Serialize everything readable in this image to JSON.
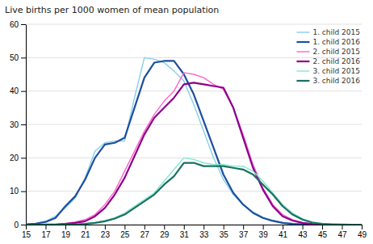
{
  "chart_data": {
    "type": "line",
    "title": "Live births per 1000 women of mean population",
    "x": [
      15,
      16,
      17,
      18,
      19,
      20,
      21,
      22,
      23,
      24,
      25,
      26,
      27,
      28,
      29,
      30,
      31,
      32,
      33,
      34,
      35,
      36,
      37,
      38,
      39,
      40,
      41,
      42,
      43,
      44,
      45,
      46,
      47,
      48,
      49
    ],
    "series": [
      {
        "name": "1. child 2015",
        "color": "#87CEEB",
        "values": [
          0.1,
          0.3,
          1.0,
          2.5,
          5.0,
          8.0,
          14.0,
          22.0,
          24.5,
          25.0,
          25.0,
          38.0,
          50.0,
          49.5,
          48.5,
          46.0,
          43.0,
          36.0,
          28.0,
          20.0,
          13.5,
          9.0,
          6.0,
          3.8,
          2.2,
          1.3,
          0.7,
          0.3,
          0.15,
          0.05,
          0.02,
          0.01,
          0.0,
          0.0,
          0.0
        ]
      },
      {
        "name": "1. child 2016",
        "color": "#1C4E9F",
        "values": [
          0.1,
          0.3,
          0.8,
          2.0,
          5.5,
          8.5,
          13.5,
          20.0,
          24.0,
          24.5,
          26.0,
          35.0,
          44.0,
          48.5,
          49.0,
          49.0,
          45.0,
          39.0,
          31.0,
          23.0,
          15.0,
          9.5,
          6.0,
          3.5,
          2.0,
          1.1,
          0.5,
          0.2,
          0.1,
          0.04,
          0.01,
          0.0,
          0.0,
          0.0,
          0.0
        ]
      },
      {
        "name": "2. child 2015",
        "color": "#FF66CC",
        "values": [
          0.0,
          0.0,
          0.05,
          0.1,
          0.3,
          0.8,
          1.5,
          3.0,
          6.0,
          10.0,
          16.0,
          22.0,
          28.0,
          33.0,
          37.0,
          40.0,
          45.5,
          45.0,
          44.0,
          42.0,
          40.5,
          35.0,
          27.0,
          18.0,
          11.0,
          6.0,
          3.0,
          1.5,
          0.6,
          0.2,
          0.05,
          0.01,
          0.0,
          0.0,
          0.0
        ]
      },
      {
        "name": "2. child 2016",
        "color": "#8B008B",
        "values": [
          0.0,
          0.0,
          0.02,
          0.05,
          0.2,
          0.5,
          1.0,
          2.5,
          5.0,
          9.0,
          14.0,
          20.5,
          27.0,
          32.0,
          35.0,
          38.0,
          42.0,
          42.5,
          42.0,
          41.5,
          41.0,
          35.0,
          26.0,
          17.0,
          10.5,
          5.5,
          2.5,
          1.2,
          0.5,
          0.15,
          0.04,
          0.01,
          0.0,
          0.0,
          0.0
        ]
      },
      {
        "name": "3. child 2015",
        "color": "#80E8D0",
        "values": [
          0.0,
          0.0,
          0.0,
          0.0,
          0.05,
          0.1,
          0.3,
          0.6,
          1.2,
          2.0,
          3.5,
          5.5,
          7.5,
          9.5,
          13.0,
          16.5,
          20.0,
          19.5,
          18.5,
          18.0,
          18.0,
          17.5,
          17.5,
          16.0,
          13.0,
          9.5,
          6.0,
          3.5,
          1.8,
          0.8,
          0.3,
          0.08,
          0.02,
          0.0,
          0.0
        ]
      },
      {
        "name": "3. child 2016",
        "color": "#1A7060",
        "values": [
          0.0,
          0.0,
          0.0,
          0.0,
          0.02,
          0.05,
          0.2,
          0.5,
          1.0,
          1.8,
          3.0,
          5.0,
          7.0,
          9.0,
          12.0,
          14.5,
          18.5,
          18.5,
          17.5,
          17.5,
          17.5,
          17.0,
          16.5,
          15.0,
          12.0,
          9.0,
          5.5,
          3.0,
          1.5,
          0.6,
          0.2,
          0.05,
          0.01,
          0.0,
          0.0
        ]
      }
    ],
    "xlim": [
      15,
      49
    ],
    "ylim": [
      0,
      60
    ],
    "xticks": [
      15,
      17,
      19,
      21,
      23,
      25,
      27,
      29,
      31,
      33,
      35,
      37,
      39,
      41,
      43,
      45,
      47,
      49
    ],
    "yticks": [
      0,
      10,
      20,
      30,
      40,
      50,
      60
    ],
    "grid": true,
    "legend": "upper right"
  }
}
